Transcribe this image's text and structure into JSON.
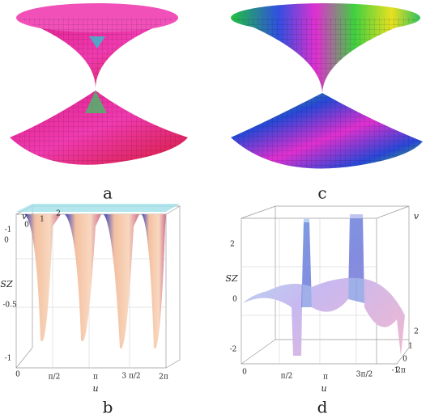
{
  "panels": [
    {
      "label": "a"
    },
    {
      "label": "c"
    },
    {
      "label": "b",
      "axis_labels": {
        "z": "SZ",
        "u": "u",
        "v": "v"
      },
      "v_ticks": [
        "-1",
        "0",
        "1",
        "2"
      ],
      "z_ticks": [
        "0",
        "-0.5",
        "-1"
      ],
      "u_ticks": [
        "0",
        "π/2",
        "π",
        "3 π/2",
        "2π"
      ]
    },
    {
      "label": "d",
      "axis_labels": {
        "z": "SZ",
        "u": "u",
        "v": "v"
      },
      "z_ticks": [
        "2",
        "0",
        "-2"
      ],
      "u_ticks": [
        "0",
        "π/2",
        "π",
        "3π/2",
        "2π"
      ],
      "v_ticks": [
        "2",
        "1",
        "0",
        "-1"
      ]
    }
  ]
}
